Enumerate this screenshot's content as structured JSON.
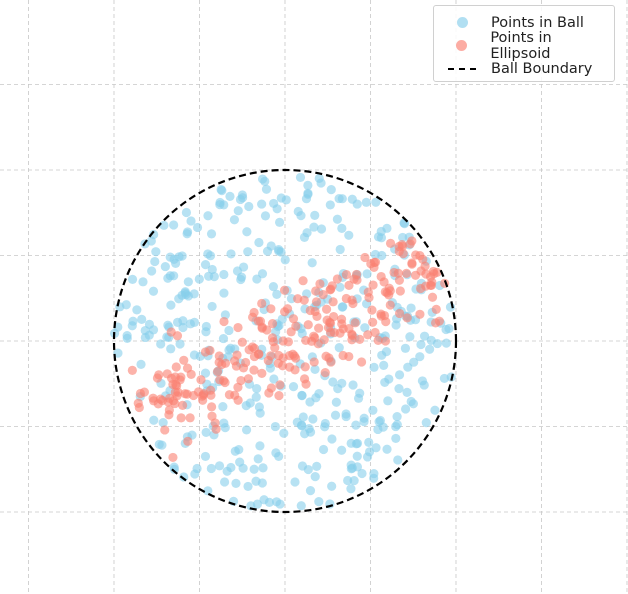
{
  "chart_data": {
    "type": "scatter",
    "title": "",
    "xlabel": "",
    "ylabel": "",
    "xlim": [
      -2.0,
      2.0
    ],
    "ylim": [
      -2.0,
      2.0
    ],
    "grid": true,
    "legend_position": "top-right",
    "series": [
      {
        "name": "Points in Ball",
        "color": "#87ceeb",
        "kind": "points",
        "count_estimate": 420,
        "distribution": "uniform in unit disk"
      },
      {
        "name": "Points in Ellipsoid",
        "color": "#fa8072",
        "kind": "points",
        "count_estimate": 250,
        "distribution": "elongated band from lower-left to upper-right"
      },
      {
        "name": "Ball Boundary",
        "color": "#000000",
        "kind": "circle",
        "center": [
          0,
          0
        ],
        "radius": 1.0,
        "style": "dashed"
      }
    ]
  }
}
